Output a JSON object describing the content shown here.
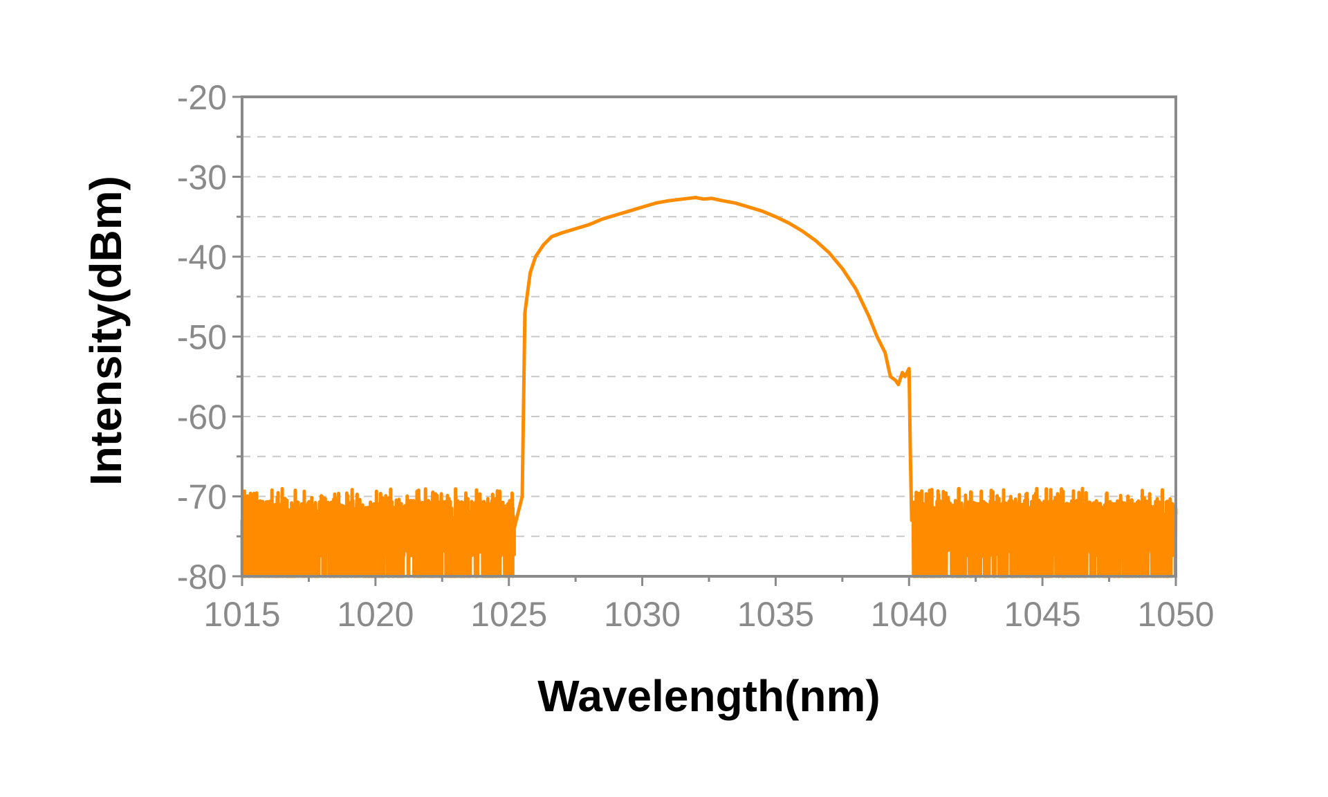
{
  "chart_data": {
    "type": "line",
    "title": "",
    "xlabel": "Wavelength(nm)",
    "ylabel": "Intensity(dBm)",
    "xlim": [
      1015,
      1050
    ],
    "ylim": [
      -80,
      -20
    ],
    "x_ticks": [
      "1015",
      "1020",
      "1025",
      "1030",
      "1035",
      "1040",
      "1045",
      "1050"
    ],
    "x_tick_values": [
      1015,
      1020,
      1025,
      1030,
      1035,
      1040,
      1045,
      1050
    ],
    "y_ticks": [
      "-20",
      "-30",
      "-40",
      "-50",
      "-60",
      "-70",
      "-80"
    ],
    "y_tick_values": [
      -20,
      -30,
      -40,
      -50,
      -60,
      -70,
      -80
    ],
    "grid": "horizontal dashed, every 5 dBm",
    "colors": {
      "series": "#ff8c00",
      "frame": "#8a8a8a",
      "grid": "#c8c8c8",
      "ticks": "#8a8a8a"
    },
    "series": [
      {
        "x": [
          1025.2,
          1025.5,
          1025.6,
          1025.7,
          1025.8,
          1026.0,
          1026.3,
          1026.6,
          1027.0,
          1027.5,
          1028.0,
          1028.5,
          1029.0,
          1029.5,
          1030.0,
          1030.5,
          1031.0,
          1031.5,
          1032.0,
          1032.3,
          1032.6,
          1033.0,
          1033.5,
          1034.0,
          1034.5,
          1035.0,
          1035.5,
          1036.0,
          1036.5,
          1037.0,
          1037.5,
          1038.0,
          1038.5,
          1038.8,
          1039.1,
          1039.3,
          1039.5,
          1039.6,
          1039.75,
          1039.85,
          1040.0,
          1040.05,
          1040.1
        ],
        "y": [
          -74.0,
          -70.0,
          -47.0,
          -44.5,
          -42.0,
          -40.0,
          -38.5,
          -37.5,
          -37.0,
          -36.5,
          -36.0,
          -35.3,
          -34.8,
          -34.3,
          -33.8,
          -33.3,
          -33.0,
          -32.8,
          -32.6,
          -32.8,
          -32.7,
          -33.0,
          -33.3,
          -33.8,
          -34.3,
          -35.0,
          -35.8,
          -36.8,
          -38.0,
          -39.5,
          -41.5,
          -44.0,
          -47.5,
          -50.0,
          -52.0,
          -55.0,
          -55.5,
          -56.0,
          -54.5,
          -55.0,
          -54.0,
          -65.0,
          -73.0
        ]
      }
    ]
  }
}
